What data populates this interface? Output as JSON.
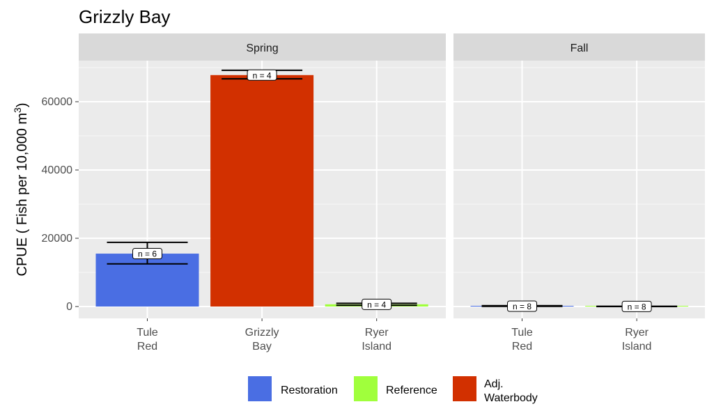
{
  "chart_data": {
    "type": "bar",
    "title": "Grizzly Bay",
    "ylabel": "CPUE ( Fish per 10,000 m",
    "ylabel_superscript": "3",
    "ylabel_suffix": ")",
    "ylim": [
      0,
      70000
    ],
    "yticks": [
      0,
      20000,
      40000,
      60000
    ],
    "ytick_labels": [
      "0",
      "20000",
      "40000",
      "60000"
    ],
    "grid": true,
    "legend_position": "bottom",
    "legend": [
      {
        "label": "Restoration",
        "color": "#4a6ee3"
      },
      {
        "label": "Reference",
        "color": "#a0ff3c"
      },
      {
        "label": "Adj. Waterbody",
        "color": "#d23000"
      }
    ],
    "panels": [
      {
        "strip": "Spring",
        "categories": [
          {
            "label_lines": [
              "Tule",
              "Red"
            ],
            "value": 15500,
            "err_low": 12500,
            "err_high": 18800,
            "n_label": "n = 6",
            "type": "Restoration"
          },
          {
            "label_lines": [
              "Grizzly",
              "Bay"
            ],
            "value": 67800,
            "err_low": 66700,
            "err_high": 69200,
            "n_label": "n = 4",
            "type": "Adj. Waterbody"
          },
          {
            "label_lines": [
              "Ryer",
              "Island"
            ],
            "value": 650,
            "err_low": 350,
            "err_high": 950,
            "n_label": "n = 4",
            "type": "Reference"
          }
        ]
      },
      {
        "strip": "Fall",
        "categories": [
          {
            "label_lines": [
              "Tule",
              "Red"
            ],
            "value": 100,
            "err_low": 50,
            "err_high": 250,
            "n_label": "n = 8",
            "type": "Restoration"
          },
          {
            "label_lines": [
              "Ryer",
              "Island"
            ],
            "value": 30,
            "err_low": 0,
            "err_high": 80,
            "n_label": "n = 8",
            "type": "Reference"
          }
        ]
      }
    ]
  }
}
